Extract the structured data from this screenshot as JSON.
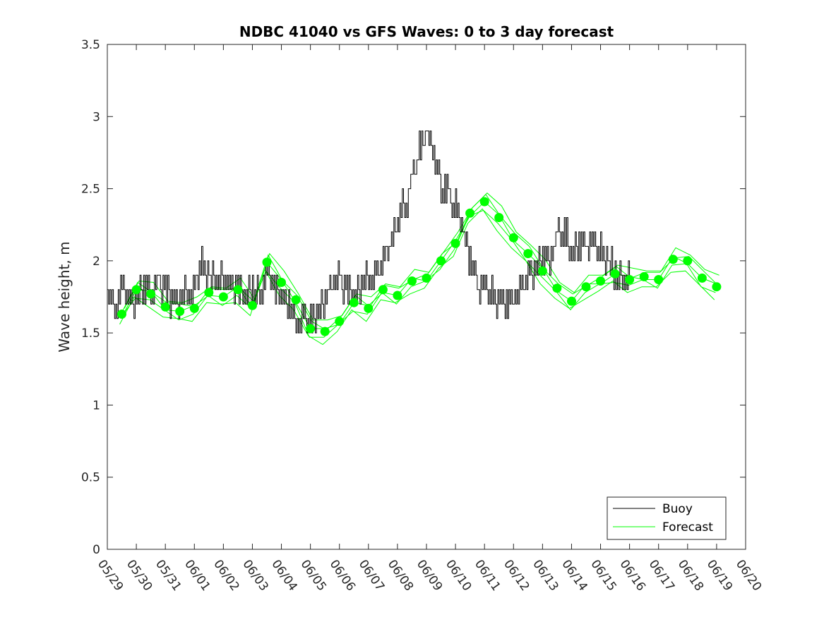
{
  "chart_data": {
    "type": "line",
    "title": "NDBC 41040 vs GFS Waves: 0 to 3 day forecast",
    "ylabel": "Wave height, m",
    "xlabel": "",
    "xlim": [
      0,
      22
    ],
    "ylim": [
      0,
      3.5
    ],
    "yticks": [
      0,
      0.5,
      1,
      1.5,
      2,
      2.5,
      3,
      3.5
    ],
    "ytick_labels": [
      "0",
      "0.5",
      "1",
      "1.5",
      "2",
      "2.5",
      "3",
      "3.5"
    ],
    "x_tick_labels": [
      "05/29",
      "05/30",
      "05/31",
      "06/01",
      "06/02",
      "06/03",
      "06/04",
      "06/05",
      "06/06",
      "06/07",
      "06/08",
      "06/09",
      "06/10",
      "06/11",
      "06/12",
      "06/13",
      "06/14",
      "06/15",
      "06/16",
      "06/17",
      "06/18",
      "06/19",
      "06/20"
    ],
    "grid": false,
    "legend_position": "bottom-right",
    "colors": {
      "buoy": "#000000",
      "forecast": "#00ff00"
    },
    "series": [
      {
        "name": "Buoy",
        "points": [
          [
            0.0,
            1.8
          ],
          [
            0.25,
            1.7
          ],
          [
            0.5,
            1.8
          ],
          [
            0.75,
            1.7
          ],
          [
            1.0,
            1.75
          ],
          [
            1.25,
            1.85
          ],
          [
            1.5,
            1.8
          ],
          [
            1.75,
            1.85
          ],
          [
            2.0,
            1.8
          ],
          [
            2.25,
            1.7
          ],
          [
            2.5,
            1.75
          ],
          [
            2.75,
            1.75
          ],
          [
            3.0,
            1.8
          ],
          [
            3.25,
            1.95
          ],
          [
            3.5,
            1.9
          ],
          [
            3.75,
            1.85
          ],
          [
            4.0,
            1.9
          ],
          [
            4.25,
            1.8
          ],
          [
            4.5,
            1.8
          ],
          [
            4.75,
            1.75
          ],
          [
            5.0,
            1.8
          ],
          [
            5.25,
            1.75
          ],
          [
            5.5,
            1.9
          ],
          [
            5.75,
            1.8
          ],
          [
            6.0,
            1.75
          ],
          [
            6.25,
            1.7
          ],
          [
            6.5,
            1.6
          ],
          [
            6.75,
            1.55
          ],
          [
            7.0,
            1.55
          ],
          [
            7.25,
            1.65
          ],
          [
            7.5,
            1.75
          ],
          [
            7.75,
            1.85
          ],
          [
            8.0,
            1.85
          ],
          [
            8.25,
            1.8
          ],
          [
            8.5,
            1.75
          ],
          [
            8.75,
            1.85
          ],
          [
            9.0,
            1.85
          ],
          [
            9.25,
            1.9
          ],
          [
            9.5,
            2.0
          ],
          [
            9.75,
            2.1
          ],
          [
            10.0,
            2.3
          ],
          [
            10.25,
            2.4
          ],
          [
            10.5,
            2.55
          ],
          [
            10.75,
            2.75
          ],
          [
            11.0,
            2.9
          ],
          [
            11.25,
            2.75
          ],
          [
            11.5,
            2.55
          ],
          [
            11.75,
            2.45
          ],
          [
            12.0,
            2.35
          ],
          [
            12.25,
            2.2
          ],
          [
            12.5,
            2.0
          ],
          [
            12.75,
            1.85
          ],
          [
            13.0,
            1.8
          ],
          [
            13.25,
            1.75
          ],
          [
            13.5,
            1.72
          ],
          [
            13.75,
            1.7
          ],
          [
            14.0,
            1.75
          ],
          [
            14.25,
            1.8
          ],
          [
            14.5,
            1.9
          ],
          [
            14.75,
            1.95
          ],
          [
            15.0,
            2.0
          ],
          [
            15.25,
            2.05
          ],
          [
            15.5,
            2.15
          ],
          [
            15.75,
            2.2
          ],
          [
            16.0,
            2.05
          ],
          [
            16.25,
            2.1
          ],
          [
            16.5,
            2.15
          ],
          [
            16.75,
            2.1
          ],
          [
            17.0,
            2.05
          ],
          [
            17.25,
            2.0
          ],
          [
            17.5,
            1.9
          ],
          [
            17.75,
            1.85
          ],
          [
            18.0,
            1.85
          ]
        ]
      },
      {
        "name": "Forecast",
        "points": [
          [
            0.5,
            1.63
          ],
          [
            1.0,
            1.8
          ],
          [
            1.5,
            1.77
          ],
          [
            2.0,
            1.68
          ],
          [
            2.5,
            1.65
          ],
          [
            3.0,
            1.67
          ],
          [
            3.5,
            1.78
          ],
          [
            4.0,
            1.75
          ],
          [
            4.5,
            1.8
          ],
          [
            5.0,
            1.69
          ],
          [
            5.5,
            1.99
          ],
          [
            6.0,
            1.85
          ],
          [
            6.5,
            1.73
          ],
          [
            7.0,
            1.53
          ],
          [
            7.5,
            1.51
          ],
          [
            8.0,
            1.58
          ],
          [
            8.5,
            1.71
          ],
          [
            9.0,
            1.67
          ],
          [
            9.5,
            1.8
          ],
          [
            10.0,
            1.76
          ],
          [
            10.5,
            1.86
          ],
          [
            11.0,
            1.88
          ],
          [
            11.5,
            2.0
          ],
          [
            12.0,
            2.12
          ],
          [
            12.5,
            2.33
          ],
          [
            13.0,
            2.41
          ],
          [
            13.5,
            2.3
          ],
          [
            14.0,
            2.16
          ],
          [
            14.5,
            2.05
          ],
          [
            15.0,
            1.93
          ],
          [
            15.5,
            1.81
          ],
          [
            16.0,
            1.72
          ],
          [
            16.5,
            1.82
          ],
          [
            17.0,
            1.86
          ],
          [
            17.5,
            1.91
          ],
          [
            18.0,
            1.87
          ],
          [
            18.5,
            1.89
          ],
          [
            19.0,
            1.87
          ],
          [
            19.5,
            2.01
          ],
          [
            20.0,
            2.0
          ],
          [
            20.5,
            1.88
          ],
          [
            21.0,
            1.82
          ]
        ]
      }
    ]
  }
}
